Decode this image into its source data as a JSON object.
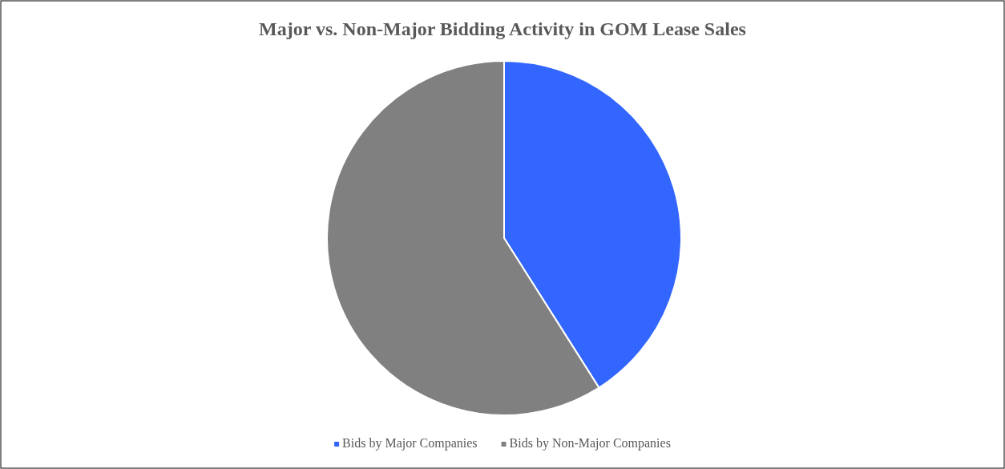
{
  "chart_data": {
    "type": "pie",
    "title": "Major vs. Non-Major Bidding Activity in GOM Lease Sales",
    "categories": [
      "Bids by Major Companies",
      "Bids by Non-Major Companies"
    ],
    "values": [
      41,
      59
    ],
    "colors": [
      "#3366ff",
      "#808080"
    ],
    "legend": "bottom"
  }
}
